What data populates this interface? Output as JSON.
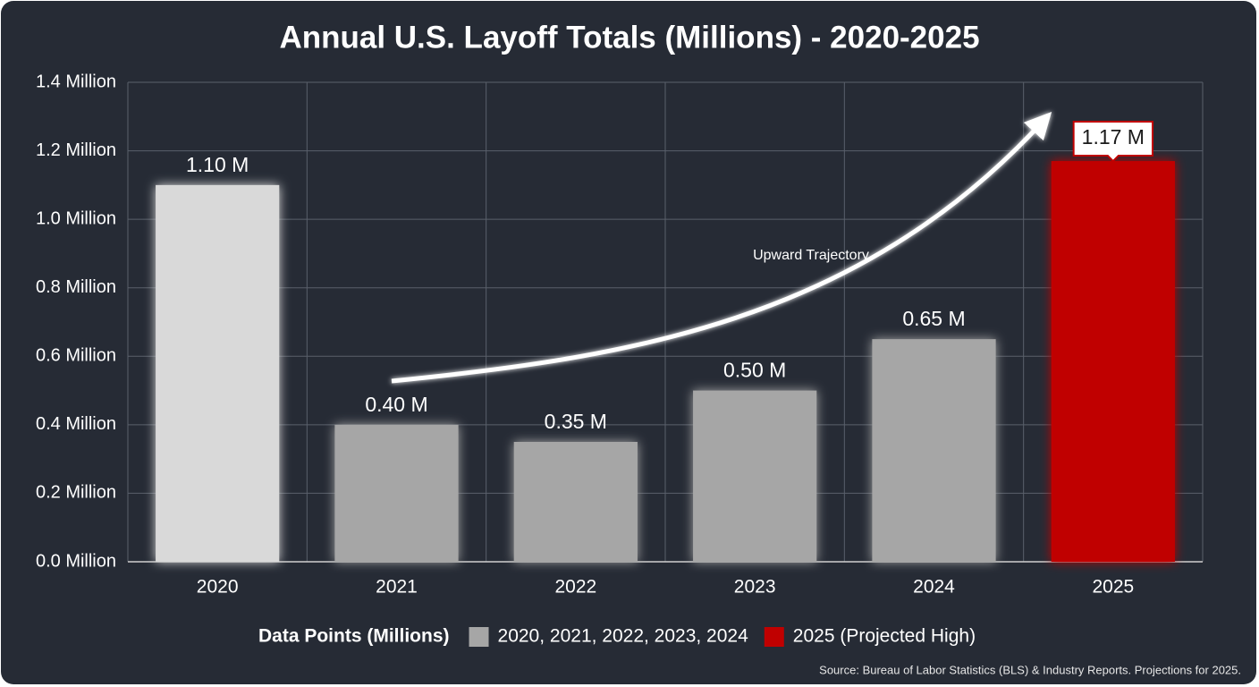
{
  "chart_data": {
    "type": "bar",
    "title": "Annual U.S. Layoff Totals (Millions) - 2020-2025",
    "categories": [
      "2020",
      "2021",
      "2022",
      "2023",
      "2024",
      "2025"
    ],
    "values": [
      1.1,
      0.4,
      0.35,
      0.5,
      0.65,
      1.17
    ],
    "value_labels": [
      "1.10 M",
      "0.40 M",
      "0.35 M",
      "0.50 M",
      "0.65 M",
      "1.17 M"
    ],
    "colors": [
      "#d9d9d9",
      "#a6a6a6",
      "#a6a6a6",
      "#a6a6a6",
      "#a6a6a6",
      "#c00000"
    ],
    "ylim": [
      0,
      1.4
    ],
    "yticks": [
      {
        "value": 0,
        "label": "0.0 Million"
      },
      {
        "value": 0.2,
        "label": "0.2 Million"
      },
      {
        "value": 0.4,
        "label": "0.4 Million"
      },
      {
        "value": 0.6,
        "label": "0.6 Million"
      },
      {
        "value": 0.8,
        "label": "0.8 Million"
      },
      {
        "value": 1.0,
        "label": "1.0 Million"
      },
      {
        "value": 1.2,
        "label": "1.2 Million"
      },
      {
        "value": 1.4,
        "label": "1.4 Million"
      }
    ],
    "grid": true,
    "annotation": "Upward Trajectory",
    "legend": {
      "title": "Data Points (Millions)",
      "items": [
        {
          "label": "2020, 2021, 2022, 2023, 2024",
          "color": "#a6a6a6"
        },
        {
          "label": "2025 (Projected High)",
          "color": "#c00000"
        }
      ]
    },
    "source": "Source: Bureau of Labor Statistics (BLS) & Industry Reports. Projections for 2025."
  }
}
